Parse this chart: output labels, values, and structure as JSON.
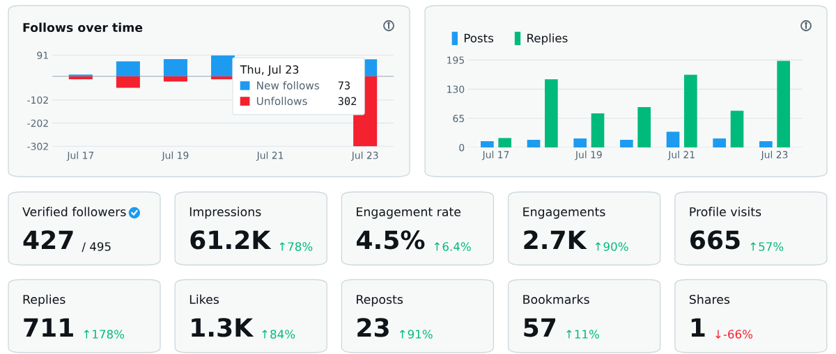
{
  "chart_data": [
    {
      "type": "bar",
      "title": "Follows over time",
      "categories": [
        "Jul 17",
        null,
        "Jul 19",
        null,
        "Jul 21",
        null,
        "Jul 23"
      ],
      "stacked": true,
      "series": [
        {
          "name": "New follows",
          "color": "#1d9bf0",
          "values": [
            7,
            64,
            74,
            90,
            null,
            null,
            73
          ]
        },
        {
          "name": "Unfollows",
          "color": "#f4212e",
          "values": [
            -13,
            -50,
            -23,
            -13,
            null,
            null,
            -302
          ]
        }
      ],
      "ylim": [
        -310,
        95
      ],
      "yticks": [
        91,
        -102,
        -202,
        -302
      ],
      "grid": "y",
      "legend": "top right",
      "legend_title": "Thu, Jul 23",
      "annotations": [
        "73",
        "302"
      ]
    },
    {
      "type": "bar",
      "categories": [
        "Jul 17",
        null,
        "Jul 19",
        null,
        "Jul 21",
        null,
        "Jul 23"
      ],
      "series": [
        {
          "name": "Posts",
          "color": "#1d9bf0",
          "values": [
            14,
            17,
            20,
            17,
            35,
            20,
            14
          ]
        },
        {
          "name": "Replies",
          "color": "#00ba7c",
          "values": [
            21,
            152,
            76,
            90,
            162,
            82,
            193
          ]
        }
      ],
      "ylim": [
        0,
        197
      ],
      "yticks": [
        0,
        65,
        130,
        195
      ],
      "grid": "y",
      "legend": "top left"
    },
    {
      "type": "other",
      "title": "Verified followers",
      "annotations": [
        "427",
        "/ 495"
      ],
      "colors": [
        "#0f1419",
        "#0f1419"
      ]
    },
    {
      "type": "other",
      "title": "Impressions",
      "annotations": [
        "61.2K",
        "↑78%"
      ],
      "colors": [
        "#0f1419",
        "#00ba7c"
      ]
    },
    {
      "type": "other",
      "title": "Engagement rate",
      "annotations": [
        "4.5%",
        "↑6.4%"
      ],
      "colors": [
        "#0f1419",
        "#00ba7c"
      ]
    },
    {
      "type": "other",
      "title": "Engagements",
      "annotations": [
        "2.7K",
        "↑90%"
      ],
      "colors": [
        "#0f1419",
        "#00ba7c"
      ]
    },
    {
      "type": "other",
      "title": "Profile visits",
      "annotations": [
        "665",
        "↑57%"
      ],
      "colors": [
        "#0f1419",
        "#00ba7c"
      ]
    },
    {
      "type": "other",
      "title": "Replies",
      "annotations": [
        "711",
        "↑178%"
      ],
      "colors": [
        "#0f1419",
        "#00ba7c"
      ]
    },
    {
      "type": "other",
      "title": "Likes",
      "annotations": [
        "1.3K",
        "↑84%"
      ],
      "colors": [
        "#0f1419",
        "#00ba7c"
      ]
    },
    {
      "type": "other",
      "title": "Reposts",
      "annotations": [
        "23",
        "↑91%"
      ],
      "colors": [
        "#0f1419",
        "#00ba7c"
      ]
    },
    {
      "type": "other",
      "title": "Bookmarks",
      "annotations": [
        "57",
        "↑11%"
      ],
      "colors": [
        "#0f1419",
        "#00ba7c"
      ]
    },
    {
      "type": "other",
      "title": "Shares",
      "annotations": [
        "1",
        "↓-66%"
      ],
      "colors": [
        "#0f1419",
        "#f4212e"
      ]
    }
  ]
}
